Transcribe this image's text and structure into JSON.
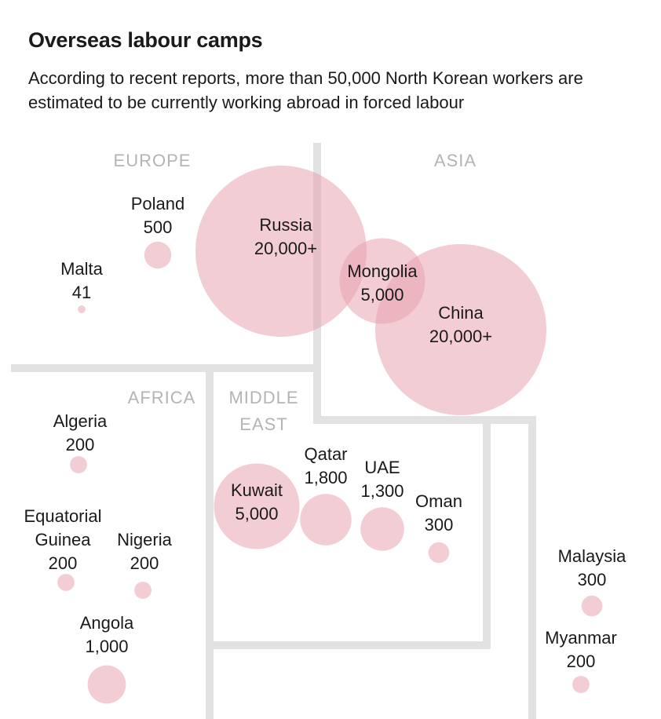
{
  "title": "Overseas labour camps",
  "subtitle": "According to recent reports, more than 50,000 North Korean workers are estimated to be currently working abroad in forced labour",
  "colors": {
    "bubble": "#e8a0ad",
    "divider": "#e2e2e2",
    "region_label": "#b4b4b4"
  },
  "chart_data": {
    "type": "bubble",
    "regions": [
      {
        "name": "EUROPE",
        "lines": [
          "EUROPE"
        ]
      },
      {
        "name": "ASIA",
        "lines": [
          "ASIA"
        ]
      },
      {
        "name": "AFRICA",
        "lines": [
          "AFRICA"
        ]
      },
      {
        "name": "MIDDLE EAST",
        "lines": [
          "MIDDLE",
          "EAST"
        ]
      }
    ],
    "countries": [
      {
        "name": "Poland",
        "region": "Europe",
        "workers": 500,
        "name_lines": [
          "Poland"
        ],
        "value_label": "500"
      },
      {
        "name": "Malta",
        "region": "Europe",
        "workers": 41,
        "name_lines": [
          "Malta"
        ],
        "value_label": "41"
      },
      {
        "name": "Russia",
        "region": "Europe/Asia",
        "workers": 20000,
        "name_lines": [
          "Russia"
        ],
        "value_label": "20,000+"
      },
      {
        "name": "Mongolia",
        "region": "Asia",
        "workers": 5000,
        "name_lines": [
          "Mongolia"
        ],
        "value_label": "5,000"
      },
      {
        "name": "China",
        "region": "Asia",
        "workers": 20000,
        "name_lines": [
          "China"
        ],
        "value_label": "20,000+"
      },
      {
        "name": "Algeria",
        "region": "Africa",
        "workers": 200,
        "name_lines": [
          "Algeria"
        ],
        "value_label": "200"
      },
      {
        "name": "Equatorial Guinea",
        "region": "Africa",
        "workers": 200,
        "name_lines": [
          "Equatorial",
          "Guinea"
        ],
        "value_label": "200"
      },
      {
        "name": "Nigeria",
        "region": "Africa",
        "workers": 200,
        "name_lines": [
          "Nigeria"
        ],
        "value_label": "200"
      },
      {
        "name": "Angola",
        "region": "Africa",
        "workers": 1000,
        "name_lines": [
          "Angola"
        ],
        "value_label": "1,000"
      },
      {
        "name": "Kuwait",
        "region": "Middle East",
        "workers": 5000,
        "name_lines": [
          "Kuwait"
        ],
        "value_label": "5,000"
      },
      {
        "name": "Qatar",
        "region": "Middle East",
        "workers": 1800,
        "name_lines": [
          "Qatar"
        ],
        "value_label": "1,800"
      },
      {
        "name": "UAE",
        "region": "Middle East",
        "workers": 1300,
        "name_lines": [
          "UAE"
        ],
        "value_label": "1,300"
      },
      {
        "name": "Oman",
        "region": "Middle East",
        "workers": 300,
        "name_lines": [
          "Oman"
        ],
        "value_label": "300"
      },
      {
        "name": "Malaysia",
        "region": "Asia",
        "workers": 300,
        "name_lines": [
          "Malaysia"
        ],
        "value_label": "300"
      },
      {
        "name": "Myanmar",
        "region": "Asia",
        "workers": 200,
        "name_lines": [
          "Myanmar"
        ],
        "value_label": "200"
      }
    ]
  }
}
